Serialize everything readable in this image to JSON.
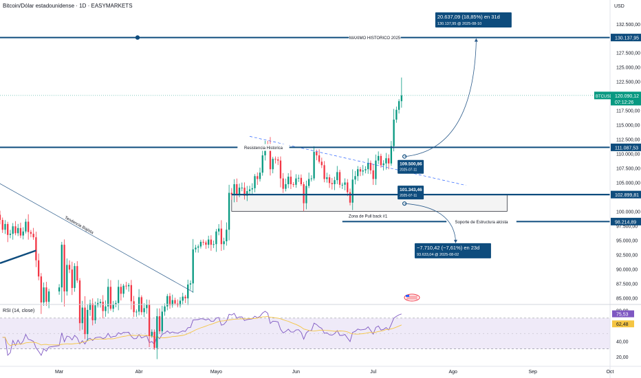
{
  "header": {
    "title": "Bitcoin/Dólar estadounidense · 1D · EASYMARKETS",
    "currency": "USD"
  },
  "rsi": {
    "title": "RSI (14, close)",
    "axis_ticks": [
      "80,00",
      "40,00",
      "20,00"
    ],
    "current_value_label": "75,53",
    "ma_value_label": "62,48",
    "current_value": 75.53,
    "ma_value": 62.48,
    "upper_band": 70,
    "lower_band": 30,
    "line_color": "#7e57c2",
    "ma_color": "#f5c542",
    "band_fill": "#efeaf8"
  },
  "chart_data": {
    "type": "candlestick",
    "symbol": "BTCUSD",
    "y_axis_ticks": [
      "132.500,00",
      "127.500,00",
      "125.000,00",
      "122.500,00",
      "117.500,00",
      "115.000,00",
      "112.500,00",
      "110.000,00",
      "107.500,00",
      "105.000,00",
      "100.000,00",
      "97.500,00",
      "95.000,00",
      "92.500,00",
      "90.000,00",
      "87.500,00",
      "85.000,00"
    ],
    "y_tick_values": [
      132500,
      127500,
      125000,
      122500,
      117500,
      115000,
      112500,
      110000,
      107500,
      105000,
      100000,
      97500,
      95000,
      92500,
      90000,
      87500,
      85000
    ],
    "ylim": [
      84200,
      134500
    ],
    "x_axis_ticks": [
      "Mar",
      "Abr",
      "Mayo",
      "Jun",
      "Jul",
      "Ago",
      "Sep",
      "Oct"
    ],
    "x_tick_dates": [
      "2025-03-01",
      "2025-04-01",
      "2025-05-01",
      "2025-06-01",
      "2025-07-01",
      "2025-08-01",
      "2025-09-01",
      "2025-10-01"
    ],
    "xlim": [
      "2025-02-06",
      "2025-10-01"
    ],
    "price_labels": [
      {
        "text": "130.137,95",
        "value": 130137.95,
        "color": "#0e4c7d"
      },
      {
        "text": "111.087,53",
        "value": 111087.53,
        "color": "#0e4c7d"
      },
      {
        "text": "102.899,81",
        "value": 102899.81,
        "color": "#0e4c7d"
      },
      {
        "text": "98.214,89",
        "value": 98214.89,
        "color": "#0e4c7d"
      }
    ],
    "current_price": {
      "symbol_label": "BTCUSD",
      "price_label": "120.090,12",
      "countdown": "07:12:26",
      "value": 120090.12,
      "color": "#089981"
    },
    "horizontal_levels": [
      {
        "name": "max-historico",
        "label": "MAXIMO HISTORICO 2025",
        "value": 130137.95,
        "start": "2025-02-06"
      },
      {
        "name": "resistencia",
        "label": "Resistencia Historica",
        "value": 111087.53,
        "start": "2025-02-06"
      },
      {
        "name": "soporte-estructura",
        "label": "Soporte de Estructura alcista",
        "value": 98214.89,
        "start": "2025-06-19"
      },
      {
        "name": "pullback-top",
        "label": "",
        "value": 102899.81,
        "start": "2025-05-07"
      }
    ],
    "zones": [
      {
        "label": "Zona de Pull back #1",
        "from": "2025-05-07",
        "to": "2025-08-22",
        "top": 102899.81,
        "bottom": 100000
      }
    ],
    "trendlines": [
      {
        "label": "Tendencia Bajista",
        "from": [
          "2025-02-06",
          104800
        ],
        "to": [
          "2025-04-22",
          86000
        ],
        "style": "solid"
      },
      {
        "label": "",
        "from": [
          "2025-05-14",
          113000
        ],
        "to": [
          "2025-08-06",
          104500
        ],
        "style": "dashed"
      },
      {
        "label": "",
        "from": [
          "2025-02-06",
          91000
        ],
        "to": [
          "2025-02-20",
          93200
        ],
        "style": "thick"
      }
    ],
    "callouts": [
      {
        "title": "20.637,09 (18,85%) en 31d",
        "sub": "130.137,95 @ 2025-08-10",
        "anchor": [
          "2025-07-11",
          109500.86
        ],
        "target": [
          "2025-08-10",
          130137.95
        ],
        "direction": "up"
      },
      {
        "title": "−7.710,42 (−7,61%) en 23d",
        "sub": "93.633,04 @ 2025-08-02",
        "anchor": [
          "2025-07-11",
          101343.46
        ],
        "target": [
          "2025-08-02",
          93633.04
        ],
        "direction": "down"
      }
    ],
    "point_labels": [
      {
        "value_text": "109.500,86",
        "date_text": "2025-07-11",
        "date": "2025-07-11",
        "value": 109500.86
      },
      {
        "value_text": "101.343,46",
        "date_text": "2025-07-11",
        "date": "2025-07-11",
        "value": 101343.46
      }
    ],
    "colors": {
      "up": "#089981",
      "down": "#f23645",
      "drawing": "#0e4c7d"
    },
    "closes": [
      [
        98500,
        96800,
        97800,
        95900,
        96100,
        97400,
        96200,
        97100,
        95800,
        96500,
        98200,
        96400,
        96100,
        95500,
        91500,
        88700,
        84200,
        86800,
        84300,
        86100
      ],
      [
        86800,
        94200,
        86100,
        90700,
        89900,
        86700,
        90500,
        88000,
        80600,
        83300,
        78700,
        82900,
        84000,
        81100,
        83700,
        84100,
        84300,
        82700,
        83500,
        86900,
        83100,
        83900,
        84100,
        86900,
        85700,
        87100,
        87000,
        87200,
        84400,
        82500,
        82600
      ],
      [
        85100,
        82500,
        83200,
        83900,
        78400,
        79100,
        76300,
        81800,
        79200,
        82600,
        83500,
        85300,
        83700,
        84600,
        84000,
        83700,
        84500,
        85200,
        84900,
        87300,
        87500,
        93400,
        93700,
        93900,
        94700,
        94600,
        94200,
        95100,
        94200,
        94300
      ],
      [
        96500,
        97000,
        94300,
        94800,
        96800,
        103200,
        102900,
        104700,
        102800,
        104100,
        104100,
        102700,
        103500,
        103800,
        104000,
        106100,
        105600,
        106700,
        109700,
        111700,
        111100,
        107300,
        109100,
        109000,
        108800,
        105700,
        103900,
        104700,
        106000,
        104700,
        104600
      ],
      [
        105700,
        105800,
        104700,
        101400,
        104400,
        105600,
        105700,
        110300,
        109700,
        108600,
        108000,
        105600,
        105900,
        104900,
        104700,
        105400,
        106800,
        104600,
        104600,
        105000,
        103300,
        101500,
        105500,
        106100,
        107300,
        106900,
        107100,
        107300,
        108400,
        107100
      ],
      [
        105600,
        108800,
        109600,
        108000,
        108300,
        109200,
        108300,
        111300,
        115900,
        117600,
        119100,
        120090
      ]
    ],
    "month_starts": [
      "2025-02-06",
      "2025-03-01",
      "2025-04-01",
      "2025-05-01",
      "2025-06-01",
      "2025-07-01"
    ],
    "last_candle_high": 123200
  }
}
